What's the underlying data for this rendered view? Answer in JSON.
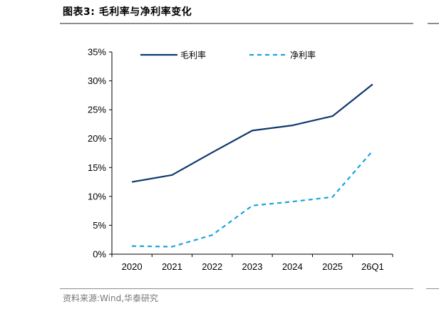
{
  "figure": {
    "title": "图表3:  毛利率与净利率变化",
    "source": "资料来源:Wind,华泰研究"
  },
  "chart_data": {
    "type": "line",
    "title": "",
    "xlabel": "",
    "ylabel": "",
    "categories": [
      "2020",
      "2021",
      "2022",
      "2023",
      "2024",
      "2025",
      "26Q1"
    ],
    "y_ticks": [
      "0%",
      "5%",
      "10%",
      "15%",
      "20%",
      "25%",
      "30%",
      "35%"
    ],
    "ylim": [
      0,
      35
    ],
    "y_unit": "%",
    "grid": false,
    "legend_position": "top",
    "series": [
      {
        "name": "毛利率",
        "color": "#0e3a6e",
        "dash": "solid",
        "values": [
          12.5,
          13.7,
          17.6,
          21.4,
          22.3,
          23.9,
          29.4
        ]
      },
      {
        "name": "净利率",
        "color": "#1aa3e0",
        "dash": "dashed",
        "values": [
          1.4,
          1.3,
          3.3,
          8.4,
          9.1,
          9.9,
          17.9
        ]
      }
    ]
  }
}
